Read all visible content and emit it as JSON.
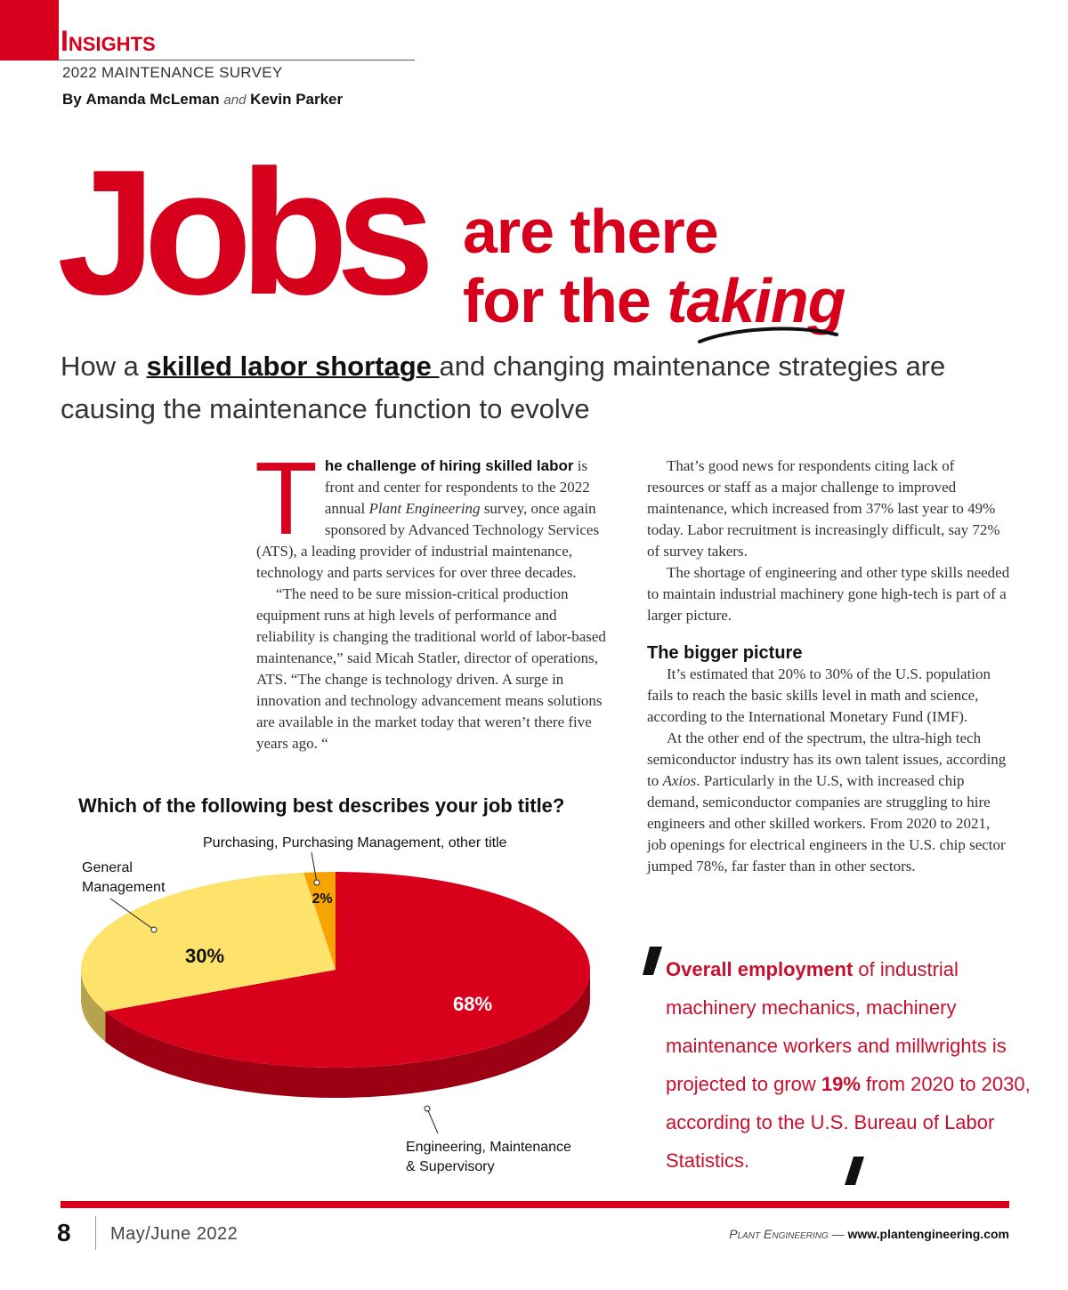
{
  "header": {
    "section": "Insights",
    "subtitle": "2022 MAINTENANCE SURVEY",
    "author1": "Amanda McLeman",
    "and": "and",
    "author2": "Kevin Parker",
    "prefix": "By"
  },
  "headline": {
    "big_word": "Jobs",
    "line1": "are there",
    "line2_a": "for the ",
    "line2_b": "taking"
  },
  "deck": {
    "part1": "How a ",
    "emphasis": "skilled labor shortage ",
    "part2": "and changing maintenance strategies are causing the maintenance function to evolve"
  },
  "article": {
    "dropcap": "T",
    "lead_bold": "he challenge of hiring skilled labor",
    "p1_a": " is front and center for respondents to the 2022 annual ",
    "p1_italic": "Plant Engineering",
    "p1_b": " survey, once again sponsored by Advanced Technology Services (ATS), a leading provider of industrial maintenance, technology and parts services for over three decades.",
    "p2": "“The need to be sure mission-critical production equipment runs at high levels of performance and reliability is changing the traditional world of labor-based maintenance,” said Micah Statler, director of operations, ATS. “The change is technology driven. A surge in innovation and technology advancement means solutions are available in the market today that weren’t there five years ago. “",
    "p3": "That’s good news for respondents citing lack of resources or staff as a major challenge to improved maintenance, which increased from 37% last year to 49% today. Labor recruitment is increasingly difficult, say 72% of survey takers.",
    "p4": "The shortage of engineering and other type skills needed to maintain industrial machinery gone high-tech is part of a larger picture.",
    "subhead": "The bigger picture",
    "p5": "It’s estimated that 20% to 30% of the U.S. population fails to reach the basic skills level in math and science, according to the International Monetary Fund (IMF).",
    "p6_a": "At the other end of the spectrum, the ultra-high tech semiconductor industry has its own talent issues, according to ",
    "p6_italic": "Axios",
    "p6_b": ". Particularly in the U.S, with increased chip demand, semiconductor companies are struggling to hire engineers and other skilled workers. From 2020 to 2021, job openings for electrical engineers in the U.S. chip sector jumped 78%, far faster than in other sectors."
  },
  "chart_data": {
    "type": "pie",
    "title": "Which of the following best describes your job title?",
    "categories": [
      "Engineering, Maintenance & Supervisory",
      "General Management",
      "Purchasing, Purchasing Management, other title"
    ],
    "values": [
      68,
      30,
      2
    ],
    "value_labels": [
      "68%",
      "30%",
      "2%"
    ],
    "label_lines": {
      "engineering": [
        "Engineering, Maintenance",
        "& Supervisory"
      ],
      "general": [
        "General",
        "Management"
      ],
      "purchasing": [
        "Purchasing, Purchasing Management, other title"
      ]
    },
    "colors": [
      "#d9001b",
      "#fde26c",
      "#f5a400"
    ],
    "legend": "none"
  },
  "pullquote": {
    "bold1": "Overall employment",
    "text1": " of industrial machinery mechanics, machinery maintenance workers and millwrights is projected to grow ",
    "bold2": "19%",
    "text2": " from 2020 to 2030, according to the U.S. Bureau of Labor Statistics."
  },
  "footer": {
    "page_number": "8",
    "date": "May/June 2022",
    "publication": "Plant Engineering",
    "dash": " — ",
    "url": "www.plantengineering.com"
  },
  "colors": {
    "brand_red": "#d6001c",
    "quote_red": "#c8102e"
  }
}
